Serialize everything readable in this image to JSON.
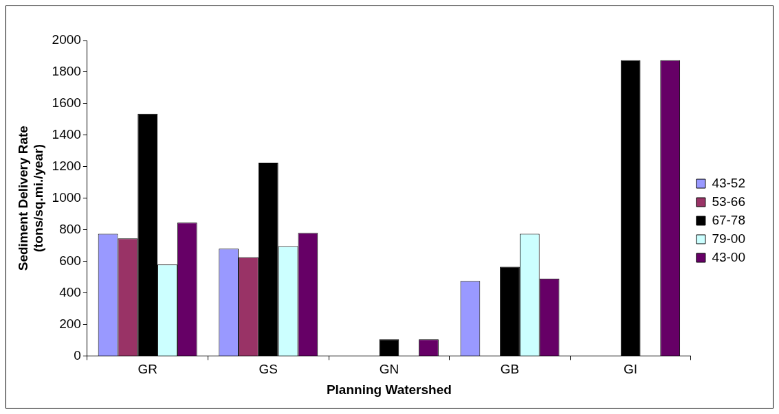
{
  "chart_data": {
    "type": "bar",
    "xlabel": "Planning Watershed",
    "ylabel": "Sediment Delivery Rate (tons/sq.mi./year)",
    "categories": [
      "GR",
      "GS",
      "GN",
      "GB",
      "GI"
    ],
    "series": [
      {
        "name": "43-52",
        "color": "#9999ff",
        "values": [
          775,
          680,
          null,
          475,
          null
        ]
      },
      {
        "name": "53-66",
        "color": "#993366",
        "values": [
          745,
          625,
          null,
          null,
          null
        ]
      },
      {
        "name": "67-78",
        "color": "#000000",
        "values": [
          1535,
          1225,
          105,
          565,
          1875
        ]
      },
      {
        "name": "79-00",
        "color": "#ccffff",
        "values": [
          580,
          695,
          null,
          775,
          null
        ]
      },
      {
        "name": "43-00",
        "color": "#660066",
        "values": [
          845,
          780,
          105,
          490,
          1875
        ]
      }
    ],
    "ylim": [
      0,
      2000
    ],
    "yticks": [
      0,
      200,
      400,
      600,
      800,
      1000,
      1200,
      1400,
      1600,
      1800,
      2000
    ],
    "grid": false,
    "legend": "right"
  }
}
